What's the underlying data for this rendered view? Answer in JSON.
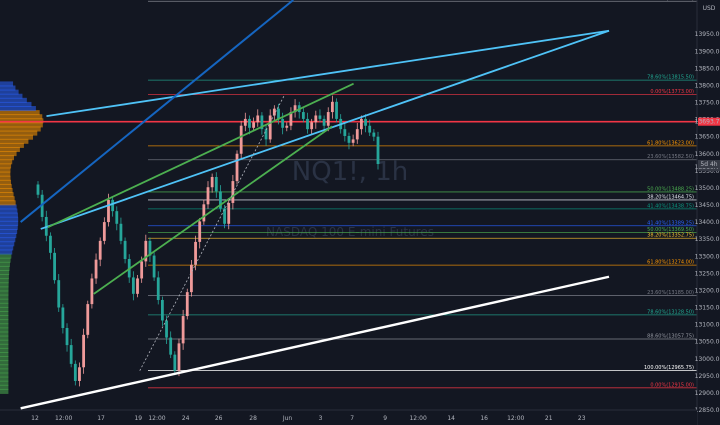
{
  "chart_data": {
    "type": "candlestick",
    "currency": "USD",
    "watermark": {
      "symbol": "NQ1!, 1h",
      "description": "NASDAQ 100 E-mini Futures"
    },
    "ylim": [
      12850,
      14050
    ],
    "y_ticks": [
      12850,
      12900,
      12950,
      13000,
      13050,
      13100,
      13150,
      13200,
      13250,
      13300,
      13350,
      13400,
      13450,
      13500,
      13550,
      13600,
      13650,
      13700,
      13750,
      13800,
      13850,
      13900,
      13950
    ],
    "x_ticks": [
      {
        "label": "12",
        "t": 0
      },
      {
        "label": "12:00",
        "t": 1
      },
      {
        "label": "17",
        "t": 2.3
      },
      {
        "label": "19",
        "t": 3.6
      },
      {
        "label": "12:00",
        "t": 4.25
      },
      {
        "label": "24",
        "t": 5.25
      },
      {
        "label": "26",
        "t": 6.4
      },
      {
        "label": "28",
        "t": 7.6
      },
      {
        "label": "Jun",
        "t": 8.8
      },
      {
        "label": "3",
        "t": 9.95
      },
      {
        "label": "7",
        "t": 11.05
      },
      {
        "label": "9",
        "t": 12.2
      },
      {
        "label": "12:00",
        "t": 13.35
      },
      {
        "label": "14",
        "t": 14.5
      },
      {
        "label": "16",
        "t": 15.65
      },
      {
        "label": "12:00",
        "t": 16.75
      },
      {
        "label": "21",
        "t": 17.9
      },
      {
        "label": "23",
        "t": 19.05
      }
    ],
    "price_labels": [
      {
        "value": 13693.75,
        "label": "13693.75",
        "color": "#f23645"
      },
      {
        "value": 13560.75,
        "label": "13560.75",
        "color": "#b2b5be"
      },
      {
        "value": 13570,
        "label": "5d 4h",
        "color": "#b2b5be"
      }
    ],
    "fib_levels": [
      {
        "label": "88.60%(14046.25)",
        "price": 14046.25,
        "color": "#9598a1"
      },
      {
        "label": "78.60%(13815.50)",
        "price": 13815.5,
        "color": "#22ab94"
      },
      {
        "label": "0.00%(13773.00)",
        "price": 13773.0,
        "color": "#f23645"
      },
      {
        "label": "61.80%(13623.00)",
        "price": 13623.0,
        "color": "#ff9800"
      },
      {
        "label": "23.60%(13582.50)",
        "price": 13582.5,
        "color": "#787b86"
      },
      {
        "label": "50.00%(13488.25)",
        "price": 13488.25,
        "color": "#4caf50"
      },
      {
        "label": "38.20%(13464.75)",
        "price": 13464.75,
        "color": "#e0e3eb"
      },
      {
        "label": "41.40%(13438.75)",
        "price": 13438.75,
        "color": "#089981"
      },
      {
        "label": "41.40%(13389.25)",
        "price": 13389.25,
        "color": "#2962ff"
      },
      {
        "label": "50.00%(13369.50)",
        "price": 13369.5,
        "color": "#4caf50"
      },
      {
        "label": "38.20%(13352.75)",
        "price": 13352.75,
        "color": "#fbc02d"
      },
      {
        "label": "61.80%(13274.00)",
        "price": 13274.0,
        "color": "#ff9800"
      },
      {
        "label": "23.60%(13185.00)",
        "price": 13185.0,
        "color": "#787b86"
      },
      {
        "label": "78.60%(13128.50)",
        "price": 13128.5,
        "color": "#22ab94"
      },
      {
        "label": "88.60%(13057.75)",
        "price": 13057.75,
        "color": "#9598a1"
      },
      {
        "label": "100.00%(12965.75)",
        "price": 12965.75,
        "color": "#ffffff"
      },
      {
        "label": "0.00%(12915.00)",
        "price": 12915.0,
        "color": "#f23645"
      }
    ],
    "red_hline": {
      "price": 13693.75,
      "color": "#f23645"
    },
    "trendlines": [
      {
        "name": "white-support",
        "color": "#ffffff",
        "from": {
          "t": -0.5,
          "price": 12855
        },
        "to": {
          "t": 20,
          "price": 13240
        }
      },
      {
        "name": "blue-resistance",
        "color": "#4fc3f7",
        "from": {
          "t": 0.2,
          "price": 13380
        },
        "to": {
          "t": 20,
          "price": 13960
        }
      },
      {
        "name": "blue-upper",
        "color": "#4fc3f7",
        "from": {
          "t": 0.4,
          "price": 13710
        },
        "to": {
          "t": 20,
          "price": 13960
        }
      },
      {
        "name": "green-upper",
        "color": "#4caf50",
        "from": {
          "t": 0.45,
          "price": 13385
        },
        "to": {
          "t": 11.1,
          "price": 13805
        }
      },
      {
        "name": "green-lower",
        "color": "#4caf50",
        "from": {
          "t": 2.05,
          "price": 13190
        },
        "to": {
          "t": 10.35,
          "price": 13680
        }
      },
      {
        "name": "blue-diagonal",
        "color": "#1565c0",
        "from": {
          "t": -0.5,
          "price": 13400
        },
        "to": {
          "t": 9,
          "price": 14050
        }
      }
    ],
    "dashed_line": {
      "from": {
        "t": 3.65,
        "price": 12965
      },
      "to": {
        "t": 8.7,
        "price": 13773
      }
    },
    "closes": [
      13480,
      13415,
      13360,
      13310,
      13230,
      13150,
      13090,
      13040,
      12985,
      12935,
      12975,
      13070,
      13160,
      13235,
      13290,
      13345,
      13400,
      13465,
      13432,
      13395,
      13345,
      13292,
      13238,
      13190,
      13235,
      13285,
      13345,
      13302,
      13238,
      13172,
      13112,
      13062,
      13012,
      12965,
      13045,
      13125,
      13195,
      13275,
      13342,
      13402,
      13452,
      13502,
      13532,
      13490,
      13440,
      13395,
      13456,
      13520,
      13600,
      13682,
      13702,
      13676,
      13692,
      13712,
      13672,
      13642,
      13712,
      13732,
      13702,
      13676,
      13682,
      13722,
      13742,
      13722,
      13702,
      13672,
      13692,
      13712,
      13702,
      13682,
      13722,
      13752,
      13702,
      13672,
      13652,
      13632,
      13642,
      13672,
      13702,
      13682,
      13662,
      13650,
      13570
    ]
  }
}
